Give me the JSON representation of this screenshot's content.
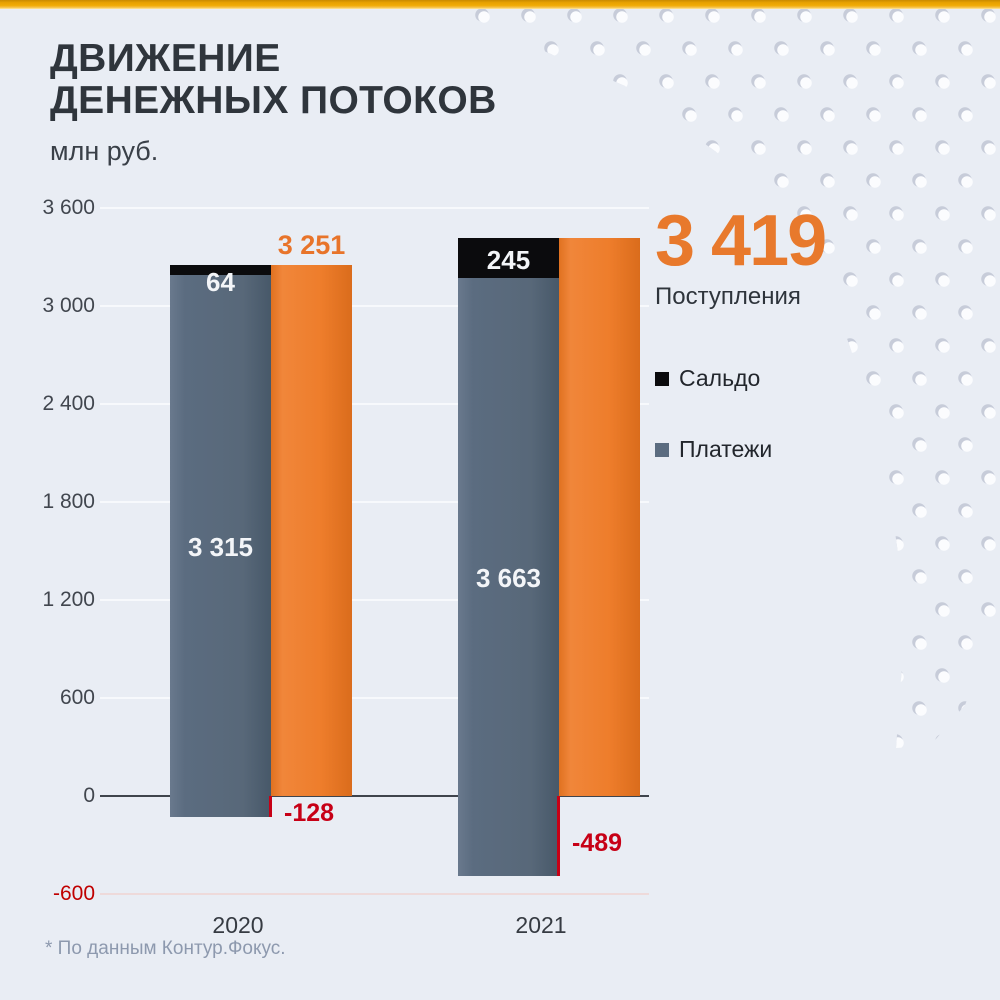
{
  "header": {
    "title_line1": "ДВИЖЕНИЕ",
    "title_line2": "ДЕНЕЖНЫХ ПОТОКОВ",
    "units": "млн руб."
  },
  "highlight": {
    "value": "3 419",
    "label": "Поступления"
  },
  "legend": {
    "items": [
      {
        "label": "Сальдо",
        "color": "#0b0b0d"
      },
      {
        "label": "Платежи",
        "color": "#5b6c80"
      }
    ]
  },
  "footnote": "* По данным Контур.Фокус.",
  "colors": {
    "background": "#e9edf4",
    "accent_orange": "#e8792c",
    "bar_orange": "#ee7d2b",
    "bar_gray": "#5b6c80",
    "bar_black": "#0b0b0d",
    "negative_red": "#c70016",
    "top_strip_amber": "#e8a201",
    "title_dark": "#2f353c"
  },
  "chart_data": {
    "type": "bar",
    "title": "Движение денежных потоков",
    "units": "млн руб.",
    "categories": [
      "2020",
      "2021"
    ],
    "series": [
      {
        "name": "Платежи",
        "values": [
          3315,
          3663
        ],
        "labels": [
          "3 315",
          "3 663"
        ],
        "color": "#5b6c80"
      },
      {
        "name": "Сальдо",
        "values": [
          64,
          245
        ],
        "labels": [
          "64",
          "245"
        ],
        "color": "#0b0b0d"
      },
      {
        "name": "Поступления",
        "values": [
          3251,
          3419
        ],
        "labels": [
          "3 251",
          "3 419"
        ],
        "color": "#ee7d2b"
      }
    ],
    "negative_markers": {
      "values": [
        -128,
        -489
      ],
      "labels": [
        "-128",
        "-489"
      ],
      "color": "#c70016"
    },
    "bar_top_labels": [
      "3 251",
      ""
    ],
    "highlight_value_label": "3 419",
    "y_ticks": [
      3600,
      3000,
      2400,
      1800,
      1200,
      600,
      0,
      -600
    ],
    "y_tick_labels": [
      "3 600",
      "3 000",
      "2 400",
      "1 800",
      "1 200",
      "600",
      "0",
      "-600"
    ],
    "ylim": [
      -600,
      3600
    ],
    "grid": true,
    "legend_position": "right"
  }
}
